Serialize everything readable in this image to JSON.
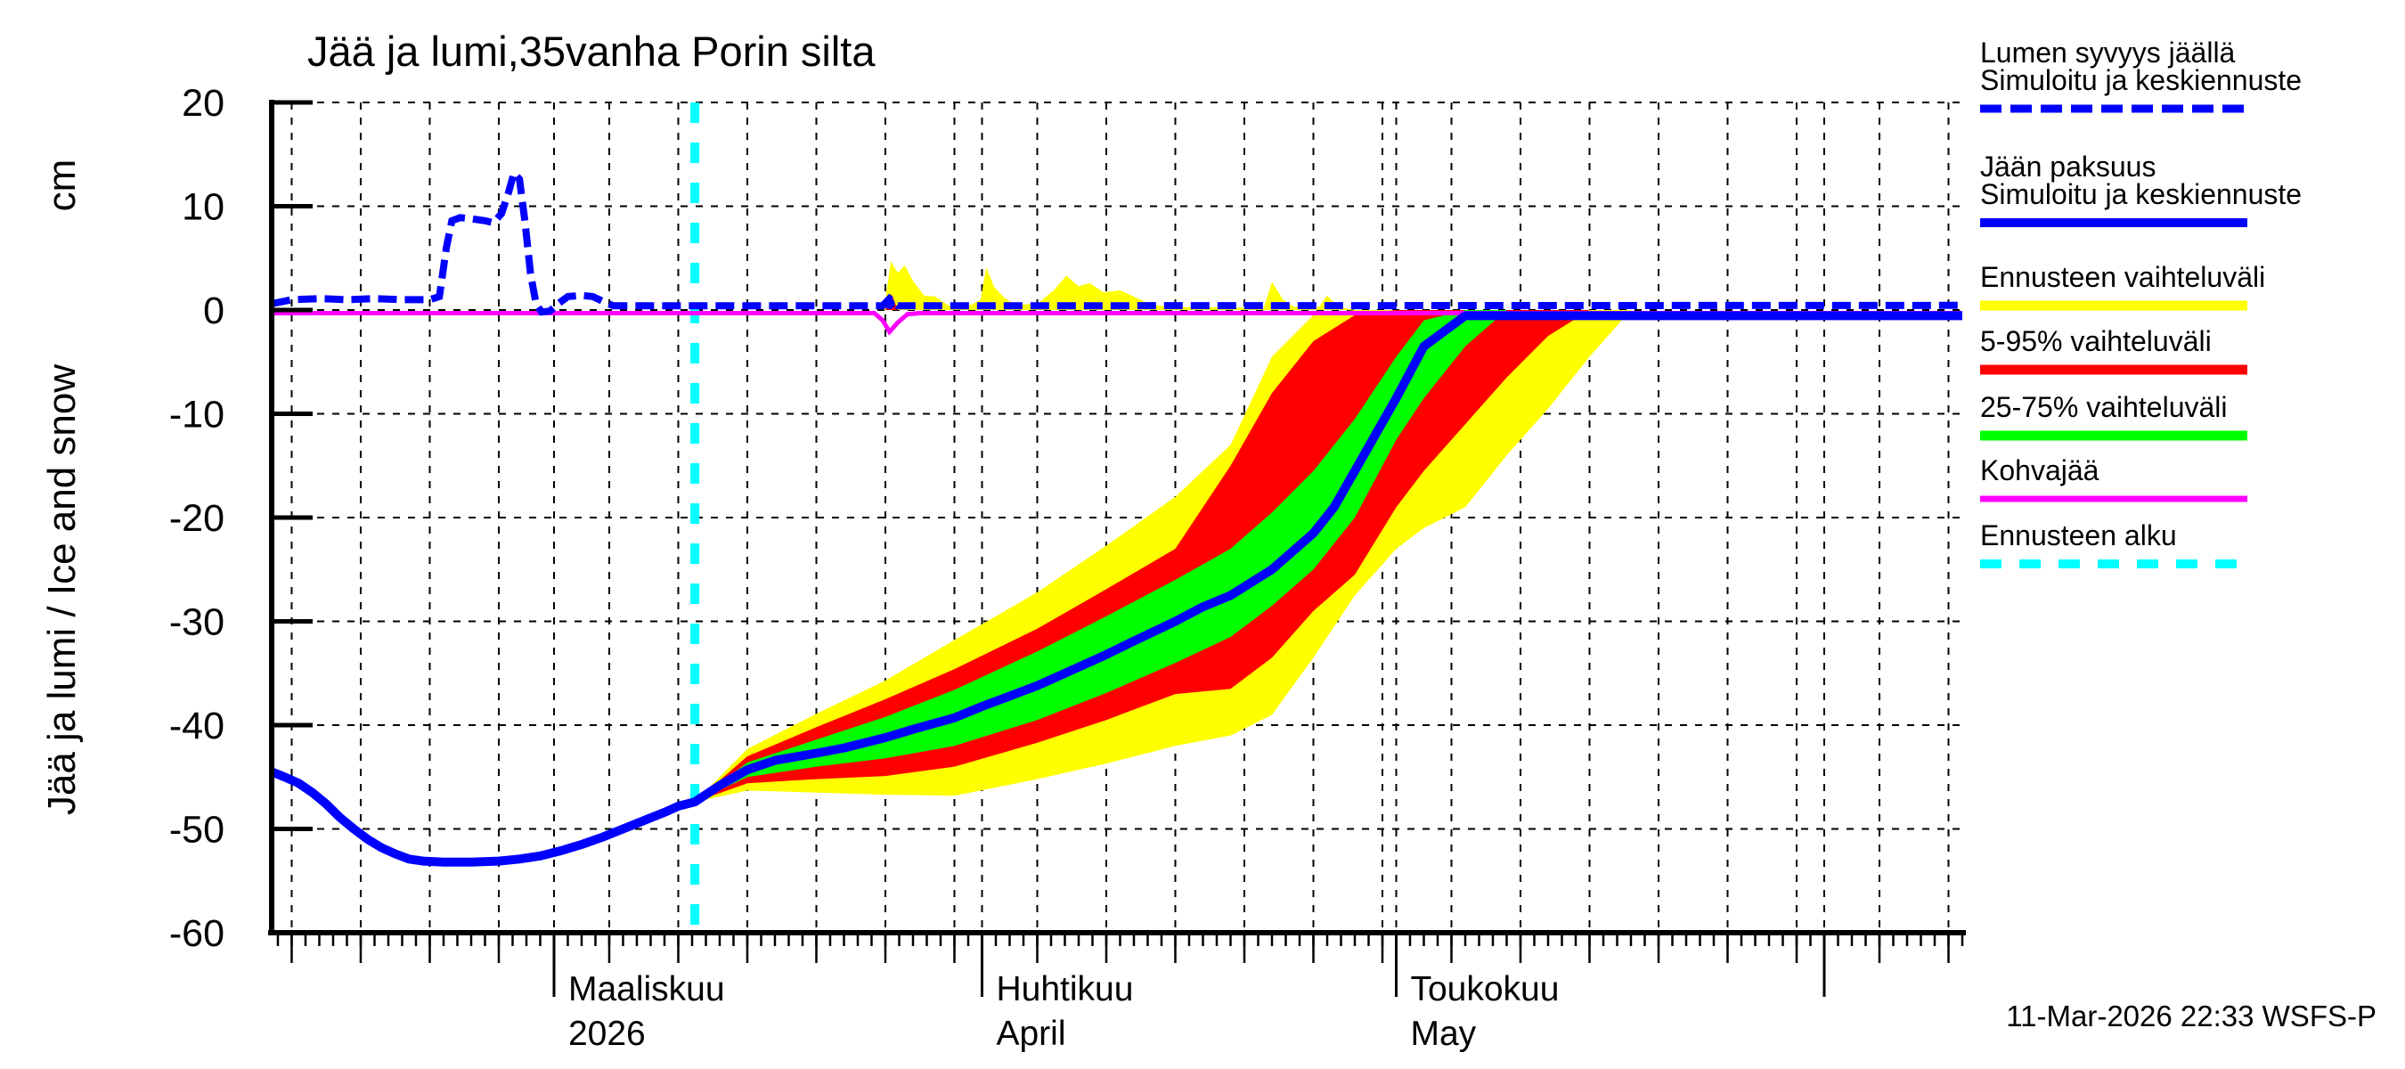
{
  "title": "Jää ja lumi,35vanha Porin silta",
  "y_axis": {
    "label": "Jää ja lumi / Ice and snow",
    "unit": "cm",
    "ticks": [
      20,
      10,
      0,
      -10,
      -20,
      -30,
      -40,
      -50,
      -60
    ],
    "min": -60,
    "max": 20
  },
  "footer": {
    "timestamp": "11-Mar-2026 22:33 WSFS-P"
  },
  "colors": {
    "simulated_line": "#0000ff",
    "forecast_range": "#ffff00",
    "range_5_95": "#ff0000",
    "range_25_75": "#00ff00",
    "kohvajaa": "#ff00ff",
    "forecast_start": "#00ffff",
    "grid": "#000000",
    "axis": "#000000",
    "background": "#ffffff"
  },
  "legend": {
    "items": [
      {
        "name": "snow-depth",
        "lines": [
          "Lumen syvyys jäällä",
          "Simuloitu ja keskiennuste"
        ],
        "color": "#0000ff",
        "dash": "24 10",
        "width": 9
      },
      {
        "name": "ice-thickness",
        "lines": [
          "Jään paksuus",
          "Simuloitu ja keskiennuste"
        ],
        "color": "#0000ff",
        "dash": null,
        "width": 10
      },
      {
        "name": "forecast-range",
        "lines": [
          "Ennusteen vaihteluväli"
        ],
        "color": "#ffff00",
        "dash": null,
        "width": 11
      },
      {
        "name": "range-5-95",
        "lines": [
          "5-95% vaihteluväli"
        ],
        "color": "#ff0000",
        "dash": null,
        "width": 11
      },
      {
        "name": "range-25-75",
        "lines": [
          "25-75% vaihteluväli"
        ],
        "color": "#00ff00",
        "dash": null,
        "width": 11
      },
      {
        "name": "kohvajaa",
        "lines": [
          "Kohvajää"
        ],
        "color": "#ff00ff",
        "dash": null,
        "width": 7
      },
      {
        "name": "forecast-start",
        "lines": [
          "Ennusteen alku"
        ],
        "color": "#00ffff",
        "dash": "24 20",
        "width": 10
      }
    ]
  },
  "chart_data": {
    "type": "line",
    "title": "Jää ja lumi,35vanha Porin silta",
    "ylabel": "Jää ja lumi / Ice and snow (cm)",
    "ylim": [
      -60,
      20
    ],
    "grid": true,
    "legend_position": "right-outside",
    "x_axis": {
      "note": "day 0 = 1 March 2026; domain runs ~8 Feb to ~11 Jun 2026",
      "domain": [
        -20.45,
        102
      ],
      "gridline_days": [
        -19,
        -14,
        -9,
        -4,
        0,
        4,
        9,
        14,
        19,
        24,
        29,
        31,
        35,
        40,
        45,
        50,
        55,
        60,
        61,
        65,
        70,
        75,
        80,
        85,
        90,
        92,
        96,
        101
      ],
      "month_tick_days": [
        0,
        31,
        61,
        92
      ],
      "months": [
        {
          "day": 0,
          "label": "Maaliskuu",
          "sublabel": "2026"
        },
        {
          "day": 31,
          "label": "Huhtikuu",
          "sublabel": "April"
        },
        {
          "day": 61,
          "label": "Toukokuu",
          "sublabel": "May"
        }
      ]
    },
    "forecast_start_day": 10.2,
    "series": {
      "ice_thickness_simulated_and_median": [
        [
          -20.45,
          -44.5
        ],
        [
          -19.5,
          -45
        ],
        [
          -18.5,
          -45.6
        ],
        [
          -17.5,
          -46.5
        ],
        [
          -16.5,
          -47.6
        ],
        [
          -15.5,
          -48.9
        ],
        [
          -14.5,
          -50
        ],
        [
          -13.5,
          -51
        ],
        [
          -12.5,
          -51.8
        ],
        [
          -11.5,
          -52.4
        ],
        [
          -10.5,
          -52.9
        ],
        [
          -9.5,
          -53.1
        ],
        [
          -8,
          -53.2
        ],
        [
          -6,
          -53.2
        ],
        [
          -4,
          -53.1
        ],
        [
          -2.5,
          -52.9
        ],
        [
          -1,
          -52.6
        ],
        [
          0.5,
          -52.1
        ],
        [
          2,
          -51.5
        ],
        [
          3.5,
          -50.8
        ],
        [
          5,
          -50
        ],
        [
          6.5,
          -49.2
        ],
        [
          8,
          -48.4
        ],
        [
          9,
          -47.8
        ],
        [
          10.2,
          -47.4
        ],
        [
          12,
          -45.8
        ],
        [
          14,
          -44.3
        ],
        [
          16,
          -43.4
        ],
        [
          19,
          -42.7
        ],
        [
          21,
          -42.2
        ],
        [
          24,
          -41.2
        ],
        [
          26,
          -40.4
        ],
        [
          29,
          -39.3
        ],
        [
          31,
          -38.2
        ],
        [
          33,
          -37.2
        ],
        [
          35,
          -36.2
        ],
        [
          37,
          -35
        ],
        [
          40,
          -33.2
        ],
        [
          42,
          -31.9
        ],
        [
          45,
          -30
        ],
        [
          47,
          -28.6
        ],
        [
          49,
          -27.5
        ],
        [
          52,
          -25
        ],
        [
          55,
          -21.5
        ],
        [
          56.5,
          -19
        ],
        [
          58,
          -15.5
        ],
        [
          59.5,
          -12
        ],
        [
          61,
          -8.5
        ],
        [
          63,
          -3.5
        ],
        [
          66,
          -0.55
        ],
        [
          102,
          -0.55
        ]
      ],
      "snow_depth_simulated_and_median": [
        [
          -20.45,
          0.6
        ],
        [
          -19,
          1
        ],
        [
          -17,
          1.1
        ],
        [
          -15,
          1
        ],
        [
          -13,
          1.1
        ],
        [
          -11,
          1
        ],
        [
          -9,
          1
        ],
        [
          -8.3,
          1.3
        ],
        [
          -7.8,
          6
        ],
        [
          -7.4,
          8.6
        ],
        [
          -6.8,
          8.9
        ],
        [
          -6,
          8.8
        ],
        [
          -5,
          8.6
        ],
        [
          -4.4,
          8.4
        ],
        [
          -3.8,
          9.3
        ],
        [
          -3.3,
          11.3
        ],
        [
          -2.9,
          13.2
        ],
        [
          -2.5,
          12.6
        ],
        [
          -2.1,
          8.5
        ],
        [
          -1.7,
          3.5
        ],
        [
          -1.3,
          0.6
        ],
        [
          -0.9,
          -0.2
        ],
        [
          -0.3,
          -0.1
        ],
        [
          0.3,
          0.6
        ],
        [
          1,
          1.3
        ],
        [
          2,
          1.4
        ],
        [
          2.8,
          1.3
        ],
        [
          3.6,
          0.8
        ],
        [
          4.3,
          0.4
        ],
        [
          23.8,
          0.4
        ],
        [
          24.3,
          1.1
        ],
        [
          24.9,
          0.4
        ],
        [
          102,
          0.45
        ]
      ],
      "kohvajaa": [
        [
          -20.45,
          -0.3
        ],
        [
          23.2,
          -0.3
        ],
        [
          23.8,
          -1
        ],
        [
          24.3,
          -2.1
        ],
        [
          24.9,
          -1.2
        ],
        [
          25.6,
          -0.4
        ],
        [
          26.5,
          -0.3
        ],
        [
          102,
          -0.3
        ]
      ]
    },
    "forecast_bands": {
      "days": [
        10.2,
        14,
        19,
        24,
        29,
        35,
        40,
        45,
        49,
        52,
        55,
        58,
        61,
        63,
        66,
        69,
        72,
        75,
        78
      ],
      "yellow_low": [
        -47.4,
        -46.3,
        -46.5,
        -46.7,
        -46.8,
        -45.2,
        -43.7,
        -42,
        -41,
        -39,
        -33.5,
        -27.5,
        -23,
        -21,
        -19,
        -14,
        -9.5,
        -4.5,
        0
      ],
      "red_low": [
        -47.4,
        -45.6,
        -45.2,
        -44.9,
        -44,
        -41.7,
        -39.5,
        -37,
        -36.5,
        -33.5,
        -29,
        -25.5,
        -19,
        -15.5,
        -11,
        -6.5,
        -2.5,
        0,
        0
      ],
      "green_low": [
        -47.4,
        -45,
        -44,
        -43.2,
        -42,
        -39.5,
        -36.9,
        -34,
        -31.5,
        -28.5,
        -25,
        -20,
        -12.5,
        -8.5,
        -3.5,
        0,
        0,
        0,
        0
      ],
      "median": [
        -47.4,
        -44.3,
        -42.7,
        -41.2,
        -39.3,
        -36.2,
        -33.2,
        -30,
        -27.5,
        -25,
        -21.5,
        -15.5,
        -8.5,
        -3.5,
        0,
        0,
        0,
        0,
        0
      ],
      "green_high": [
        -47.4,
        -43.6,
        -41.4,
        -39.2,
        -36.6,
        -32.9,
        -29.5,
        -26,
        -23,
        -19.5,
        -15.5,
        -10.5,
        -4.5,
        -1,
        0,
        0,
        0,
        0,
        0
      ],
      "red_high": [
        -47.4,
        -43,
        -40.2,
        -37.5,
        -34.6,
        -30.7,
        -26.9,
        -23,
        -15,
        -8,
        -3,
        -0.5,
        0,
        0,
        0,
        0,
        0,
        0,
        0
      ],
      "yellow_high": [
        -47.4,
        -42.3,
        -38.9,
        -35.7,
        -31.8,
        -27.2,
        -22.7,
        -18,
        -13,
        -4.5,
        -0.5,
        0,
        0,
        0,
        0,
        0,
        0,
        0,
        0
      ]
    },
    "snow_forecast_upper_range": [
      [
        23.9,
        0
      ],
      [
        24.4,
        4.7
      ],
      [
        24.9,
        3.6
      ],
      [
        25.4,
        4.3
      ],
      [
        26,
        2.8
      ],
      [
        26.8,
        1.4
      ],
      [
        27.6,
        1.3
      ],
      [
        28.6,
        0.4
      ],
      [
        30.2,
        0.5
      ],
      [
        30.9,
        1
      ],
      [
        31.3,
        4.1
      ],
      [
        31.9,
        2.2
      ],
      [
        32.6,
        1.2
      ],
      [
        33.4,
        0.5
      ],
      [
        35,
        0.6
      ],
      [
        36.2,
        1.9
      ],
      [
        37.1,
        3.3
      ],
      [
        38,
        2.3
      ],
      [
        38.8,
        2.6
      ],
      [
        39.8,
        1.7
      ],
      [
        41,
        1.9
      ],
      [
        42.3,
        1.1
      ],
      [
        43.4,
        0.5
      ],
      [
        44.5,
        0.3
      ],
      [
        51.4,
        0.2
      ],
      [
        52,
        2.7
      ],
      [
        52.8,
        1
      ],
      [
        53.6,
        0.3
      ],
      [
        55.4,
        0.3
      ],
      [
        56,
        1.4
      ],
      [
        56.8,
        0.3
      ],
      [
        58,
        0
      ]
    ],
    "snow_forecast_5_95_spike": [
      [
        24.0,
        0
      ],
      [
        24.45,
        1.5
      ],
      [
        24.9,
        0
      ]
    ],
    "snow_forecast_median_marker": {
      "day": 24.3,
      "value": 0.6
    }
  }
}
